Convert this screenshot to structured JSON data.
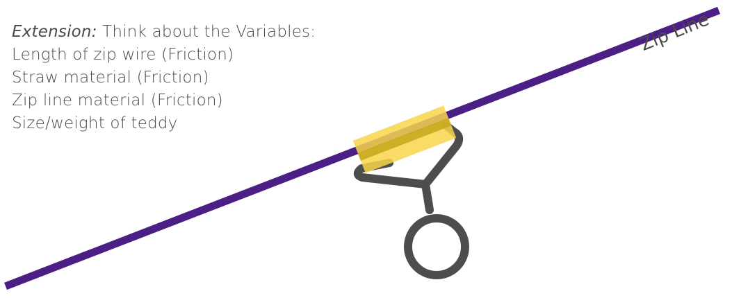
{
  "variables_text": {
    "extension_label": "Extension:",
    "intro": " Think about the Variables:",
    "items": [
      "Length of zip wire (Friction)",
      "Straw material (Friction)",
      "Zip line material (Friction)",
      "Size/weight of teddy"
    ]
  },
  "zip_line": {
    "label": "Zip Line"
  },
  "colors": {
    "zip_line": "#4b1f85",
    "straw": "#f7d64a",
    "straw_stripe": "#c9a81d",
    "hook": "#4d4d4d",
    "text": "#4a4a4a"
  }
}
